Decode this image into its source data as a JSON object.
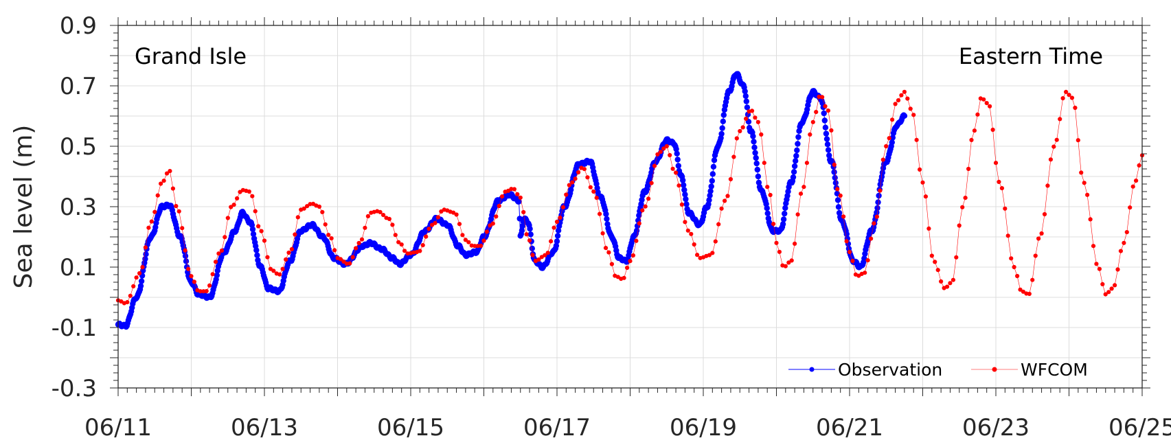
{
  "chart_data": {
    "type": "line",
    "ylabel": "Sea level (m)",
    "annotations": {
      "station": "Grand Isle",
      "timezone": "Eastern Time"
    },
    "xlim": [
      "06/11",
      "06/25"
    ],
    "ylim": [
      -0.3,
      0.9
    ],
    "x_ticks": [
      "06/11",
      "06/13",
      "06/15",
      "06/17",
      "06/19",
      "06/21",
      "06/23",
      "06/25"
    ],
    "y_ticks": [
      "-0.3",
      "-0.1",
      "0.1",
      "0.3",
      "0.5",
      "0.7",
      "0.9"
    ],
    "grid": true,
    "legend_position": "bottom-right",
    "series": [
      {
        "name": "Observation",
        "color": "#0000ff",
        "style": "thick-markers",
        "keypoints": [
          [
            0.0,
            -0.09
          ],
          [
            0.1,
            -0.095
          ],
          [
            0.25,
            0.0
          ],
          [
            0.45,
            0.2
          ],
          [
            0.6,
            0.3
          ],
          [
            0.7,
            0.305
          ],
          [
            0.85,
            0.2
          ],
          [
            1.0,
            0.05
          ],
          [
            1.1,
            0.01
          ],
          [
            1.25,
            0.0
          ],
          [
            1.45,
            0.15
          ],
          [
            1.6,
            0.22
          ],
          [
            1.7,
            0.28
          ],
          [
            1.8,
            0.25
          ],
          [
            1.95,
            0.1
          ],
          [
            2.05,
            0.03
          ],
          [
            2.2,
            0.02
          ],
          [
            2.35,
            0.12
          ],
          [
            2.5,
            0.22
          ],
          [
            2.65,
            0.24
          ],
          [
            2.8,
            0.2
          ],
          [
            2.95,
            0.13
          ],
          [
            3.1,
            0.11
          ],
          [
            3.35,
            0.17
          ],
          [
            3.45,
            0.18
          ],
          [
            3.6,
            0.16
          ],
          [
            3.75,
            0.13
          ],
          [
            3.85,
            0.11
          ],
          [
            4.0,
            0.14
          ],
          [
            4.2,
            0.22
          ],
          [
            4.35,
            0.26
          ],
          [
            4.5,
            0.24
          ],
          [
            4.65,
            0.17
          ],
          [
            4.75,
            0.14
          ],
          [
            4.9,
            0.15
          ],
          [
            5.0,
            0.2
          ],
          [
            5.2,
            0.32
          ],
          [
            5.35,
            0.34
          ],
          [
            5.48,
            0.32
          ],
          [
            5.5,
            0.2
          ],
          [
            5.55,
            0.26
          ],
          [
            5.6,
            0.25
          ],
          [
            5.7,
            0.12
          ],
          [
            5.8,
            0.1
          ],
          [
            5.95,
            0.15
          ],
          [
            6.1,
            0.3
          ],
          [
            6.3,
            0.44
          ],
          [
            6.45,
            0.45
          ],
          [
            6.6,
            0.33
          ],
          [
            6.75,
            0.2
          ],
          [
            6.85,
            0.13
          ],
          [
            6.95,
            0.12
          ],
          [
            7.05,
            0.2
          ],
          [
            7.2,
            0.35
          ],
          [
            7.35,
            0.45
          ],
          [
            7.5,
            0.52
          ],
          [
            7.6,
            0.51
          ],
          [
            7.7,
            0.4
          ],
          [
            7.8,
            0.28
          ],
          [
            7.95,
            0.24
          ],
          [
            8.05,
            0.3
          ],
          [
            8.2,
            0.5
          ],
          [
            8.35,
            0.68
          ],
          [
            8.45,
            0.74
          ],
          [
            8.55,
            0.7
          ],
          [
            8.65,
            0.55
          ],
          [
            8.8,
            0.35
          ],
          [
            8.95,
            0.22
          ],
          [
            9.05,
            0.22
          ],
          [
            9.2,
            0.38
          ],
          [
            9.35,
            0.58
          ],
          [
            9.5,
            0.68
          ],
          [
            9.6,
            0.66
          ],
          [
            9.75,
            0.45
          ],
          [
            9.9,
            0.25
          ],
          [
            10.05,
            0.12
          ],
          [
            10.15,
            0.1
          ],
          [
            10.3,
            0.22
          ],
          [
            10.5,
            0.45
          ],
          [
            10.65,
            0.57
          ],
          [
            10.75,
            0.6
          ]
        ]
      },
      {
        "name": "WFCOM",
        "color": "#ff0000",
        "style": "hourly-markers",
        "keypoints": [
          [
            0.0,
            -0.01
          ],
          [
            0.1,
            -0.02
          ],
          [
            0.3,
            0.08
          ],
          [
            0.45,
            0.25
          ],
          [
            0.6,
            0.38
          ],
          [
            0.7,
            0.42
          ],
          [
            0.8,
            0.3
          ],
          [
            1.0,
            0.07
          ],
          [
            1.1,
            0.02
          ],
          [
            1.2,
            0.02
          ],
          [
            1.4,
            0.15
          ],
          [
            1.55,
            0.3
          ],
          [
            1.7,
            0.355
          ],
          [
            1.8,
            0.35
          ],
          [
            1.95,
            0.22
          ],
          [
            2.1,
            0.09
          ],
          [
            2.2,
            0.075
          ],
          [
            2.35,
            0.15
          ],
          [
            2.5,
            0.29
          ],
          [
            2.65,
            0.31
          ],
          [
            2.75,
            0.3
          ],
          [
            2.9,
            0.2
          ],
          [
            3.0,
            0.13
          ],
          [
            3.15,
            0.11
          ],
          [
            3.3,
            0.18
          ],
          [
            3.45,
            0.28
          ],
          [
            3.55,
            0.285
          ],
          [
            3.7,
            0.26
          ],
          [
            3.85,
            0.18
          ],
          [
            3.95,
            0.145
          ],
          [
            4.1,
            0.15
          ],
          [
            4.3,
            0.24
          ],
          [
            4.45,
            0.29
          ],
          [
            4.6,
            0.28
          ],
          [
            4.75,
            0.19
          ],
          [
            4.85,
            0.17
          ],
          [
            4.95,
            0.17
          ],
          [
            5.1,
            0.24
          ],
          [
            5.3,
            0.35
          ],
          [
            5.4,
            0.36
          ],
          [
            5.5,
            0.33
          ],
          [
            5.6,
            0.2
          ],
          [
            5.7,
            0.12
          ],
          [
            5.85,
            0.14
          ],
          [
            6.0,
            0.25
          ],
          [
            6.2,
            0.38
          ],
          [
            6.35,
            0.43
          ],
          [
            6.5,
            0.35
          ],
          [
            6.7,
            0.15
          ],
          [
            6.8,
            0.07
          ],
          [
            6.9,
            0.06
          ],
          [
            7.0,
            0.12
          ],
          [
            7.2,
            0.3
          ],
          [
            7.4,
            0.48
          ],
          [
            7.5,
            0.5
          ],
          [
            7.6,
            0.42
          ],
          [
            7.8,
            0.22
          ],
          [
            7.95,
            0.13
          ],
          [
            8.1,
            0.14
          ],
          [
            8.3,
            0.32
          ],
          [
            8.5,
            0.55
          ],
          [
            8.65,
            0.62
          ],
          [
            8.75,
            0.58
          ],
          [
            8.9,
            0.35
          ],
          [
            9.0,
            0.18
          ],
          [
            9.1,
            0.1
          ],
          [
            9.2,
            0.12
          ],
          [
            9.35,
            0.35
          ],
          [
            9.5,
            0.58
          ],
          [
            9.6,
            0.67
          ],
          [
            9.7,
            0.62
          ],
          [
            9.85,
            0.35
          ],
          [
            10.0,
            0.15
          ],
          [
            10.1,
            0.07
          ],
          [
            10.2,
            0.08
          ],
          [
            10.35,
            0.25
          ],
          [
            10.5,
            0.5
          ],
          [
            10.65,
            0.65
          ],
          [
            10.75,
            0.68
          ],
          [
            10.85,
            0.62
          ],
          [
            11.0,
            0.38
          ],
          [
            11.15,
            0.12
          ],
          [
            11.3,
            0.03
          ],
          [
            11.4,
            0.05
          ],
          [
            11.55,
            0.3
          ],
          [
            11.7,
            0.55
          ],
          [
            11.8,
            0.66
          ],
          [
            11.9,
            0.64
          ],
          [
            12.05,
            0.38
          ],
          [
            12.25,
            0.1
          ],
          [
            12.35,
            0.02
          ],
          [
            12.45,
            0.01
          ],
          [
            12.6,
            0.2
          ],
          [
            12.8,
            0.5
          ],
          [
            12.95,
            0.68
          ],
          [
            13.05,
            0.66
          ],
          [
            13.2,
            0.38
          ],
          [
            13.4,
            0.1
          ],
          [
            13.5,
            0.01
          ],
          [
            13.6,
            0.03
          ],
          [
            13.75,
            0.18
          ],
          [
            13.9,
            0.38
          ],
          [
            14.0,
            0.47
          ]
        ]
      }
    ]
  }
}
